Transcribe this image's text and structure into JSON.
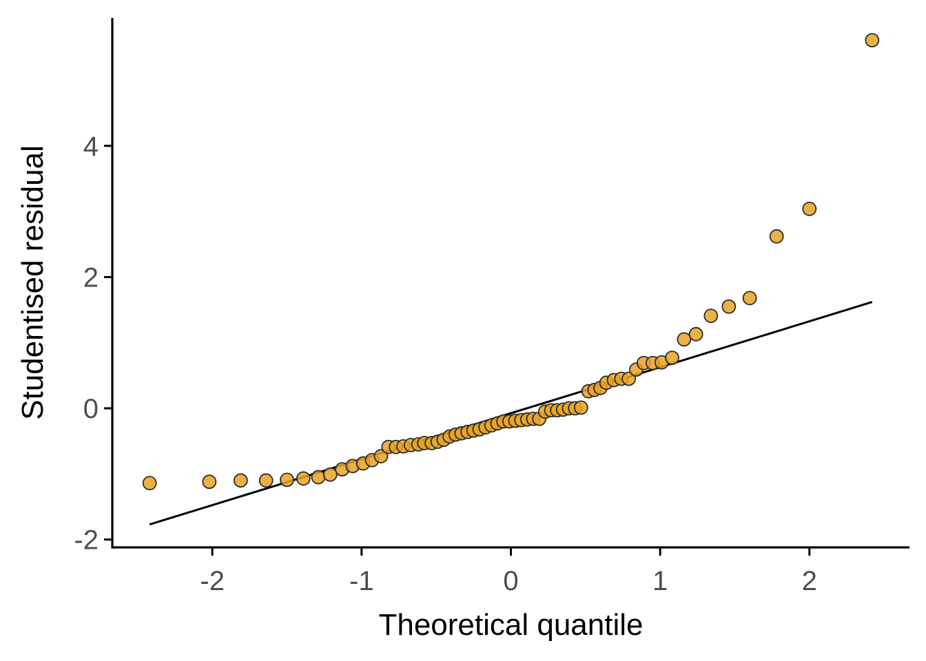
{
  "chart_data": {
    "type": "scatter",
    "xlabel": "Theoretical quantile",
    "ylabel": "Studentised residual",
    "xlim": [
      -2.67,
      2.67
    ],
    "ylim": [
      -2.12,
      5.95
    ],
    "x_ticks": [
      -2,
      -1,
      0,
      1,
      2
    ],
    "x_tick_labels": [
      "-2",
      "-1",
      "0",
      "1",
      "2"
    ],
    "y_ticks": [
      -2,
      0,
      2,
      4
    ],
    "y_tick_labels": [
      "-2",
      "0",
      "2",
      "4"
    ],
    "grid": false,
    "legend": "none",
    "point_color": "#E9A323",
    "line_color": "#000000",
    "reference_line": {
      "x": [
        -2.42,
        2.42
      ],
      "y": [
        -1.77,
        1.62
      ]
    },
    "series": [
      {
        "x": [
          -2.42,
          -2.02,
          -1.81,
          -1.64,
          -1.5,
          -1.39,
          -1.29,
          -1.21,
          -1.13,
          -1.06,
          -0.99,
          -0.93,
          -0.87,
          -0.82,
          -0.77,
          -0.72,
          -0.67,
          -0.62,
          -0.58,
          -0.53,
          -0.49,
          -0.45,
          -0.41,
          -0.37,
          -0.33,
          -0.29,
          -0.25,
          -0.21,
          -0.17,
          -0.13,
          -0.09,
          -0.05,
          -0.01,
          0.03,
          0.07,
          0.11,
          0.15,
          0.19,
          0.23,
          0.27,
          0.31,
          0.35,
          0.39,
          0.43,
          0.47,
          0.52,
          0.56,
          0.6,
          0.64,
          0.69,
          0.74,
          0.79,
          0.84,
          0.89,
          0.95,
          1.01,
          1.08,
          1.16,
          1.24,
          1.34,
          1.46,
          1.6,
          1.78,
          2.0,
          2.42
        ],
        "y": [
          -1.14,
          -1.12,
          -1.1,
          -1.1,
          -1.09,
          -1.07,
          -1.05,
          -1.01,
          -0.93,
          -0.88,
          -0.84,
          -0.79,
          -0.73,
          -0.59,
          -0.59,
          -0.58,
          -0.56,
          -0.55,
          -0.53,
          -0.53,
          -0.51,
          -0.48,
          -0.43,
          -0.4,
          -0.38,
          -0.36,
          -0.34,
          -0.32,
          -0.29,
          -0.26,
          -0.23,
          -0.2,
          -0.2,
          -0.19,
          -0.18,
          -0.17,
          -0.16,
          -0.16,
          -0.05,
          -0.03,
          -0.03,
          -0.02,
          0.0,
          0.0,
          0.01,
          0.26,
          0.28,
          0.31,
          0.39,
          0.43,
          0.45,
          0.45,
          0.59,
          0.69,
          0.69,
          0.7,
          0.77,
          1.05,
          1.13,
          1.41,
          1.55,
          1.68,
          2.62,
          3.04,
          5.61
        ]
      }
    ]
  }
}
